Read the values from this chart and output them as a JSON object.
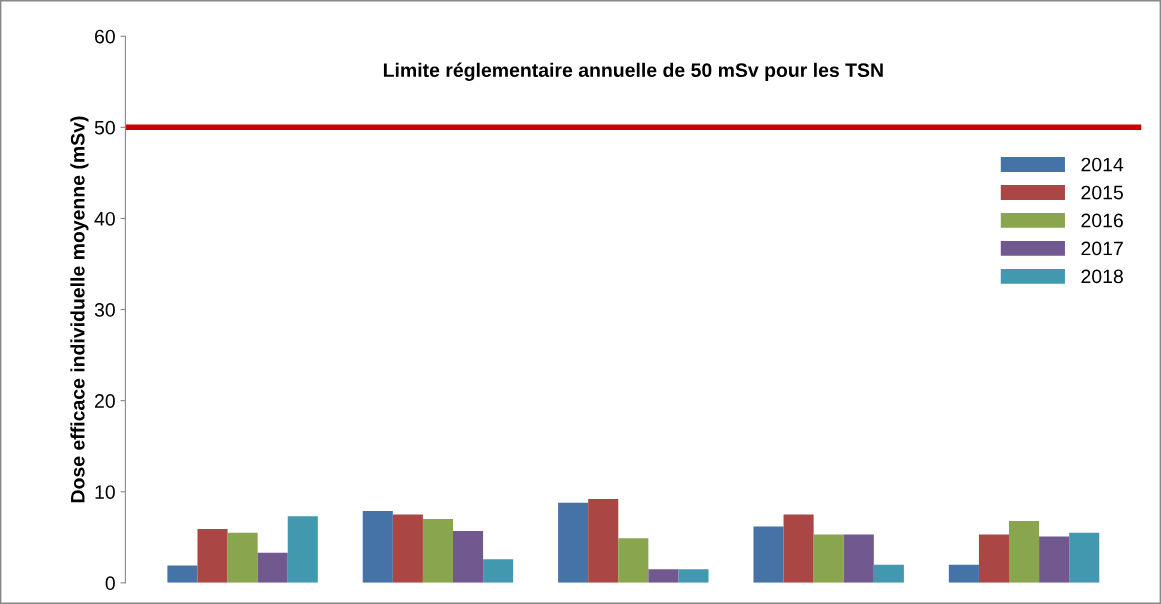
{
  "chart_data": {
    "type": "bar",
    "ylabel": "Dose efficace individuelle moyenne (mSv)",
    "categories": [
      null,
      null,
      null,
      null,
      null
    ],
    "series": [
      {
        "name": "2014",
        "color": "#4572a7",
        "values": [
          1.9,
          7.9,
          8.8,
          6.2,
          2.0
        ]
      },
      {
        "name": "2015",
        "color": "#aa4643",
        "values": [
          5.9,
          7.5,
          9.2,
          7.5,
          5.3
        ]
      },
      {
        "name": "2016",
        "color": "#89a54e",
        "values": [
          5.5,
          7.0,
          4.9,
          5.3,
          6.8
        ]
      },
      {
        "name": "2017",
        "color": "#71588f",
        "values": [
          3.3,
          5.7,
          1.5,
          5.3,
          5.1
        ]
      },
      {
        "name": "2018",
        "color": "#4198af",
        "values": [
          7.3,
          2.6,
          1.5,
          2.0,
          5.5
        ]
      }
    ],
    "ylim": [
      0,
      60
    ],
    "yticks": [
      0,
      10,
      20,
      30,
      40,
      50,
      60
    ],
    "ref_lines": [
      {
        "axis": "y",
        "value": 50,
        "label": "Limite réglementaire annuelle de 50 mSv pour les TSN",
        "color": "#cc0000",
        "line_style": "solid"
      }
    ],
    "grid": false,
    "legend": "right"
  }
}
